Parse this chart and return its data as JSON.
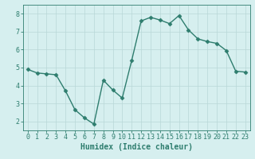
{
  "x": [
    0,
    1,
    2,
    3,
    4,
    5,
    6,
    7,
    8,
    9,
    10,
    11,
    12,
    13,
    14,
    15,
    16,
    17,
    18,
    19,
    20,
    21,
    22,
    23
  ],
  "y": [
    4.9,
    4.7,
    4.65,
    4.6,
    3.7,
    2.65,
    2.2,
    1.85,
    4.3,
    3.75,
    3.3,
    5.4,
    7.6,
    7.8,
    7.65,
    7.45,
    7.9,
    7.1,
    6.6,
    6.45,
    6.35,
    5.95,
    4.8,
    4.75
  ],
  "line_color": "#2e7d6e",
  "marker": "D",
  "markersize": 2.5,
  "linewidth": 1.0,
  "background_color": "#d6efef",
  "grid_color": "#b8d8d8",
  "xlabel": "Humidex (Indice chaleur)",
  "xlabel_fontsize": 7,
  "tick_fontsize": 6,
  "ylim": [
    1.5,
    8.5
  ],
  "xlim": [
    -0.5,
    23.5
  ],
  "yticks": [
    2,
    3,
    4,
    5,
    6,
    7,
    8
  ],
  "xticks": [
    0,
    1,
    2,
    3,
    4,
    5,
    6,
    7,
    8,
    9,
    10,
    11,
    12,
    13,
    14,
    15,
    16,
    17,
    18,
    19,
    20,
    21,
    22,
    23
  ]
}
